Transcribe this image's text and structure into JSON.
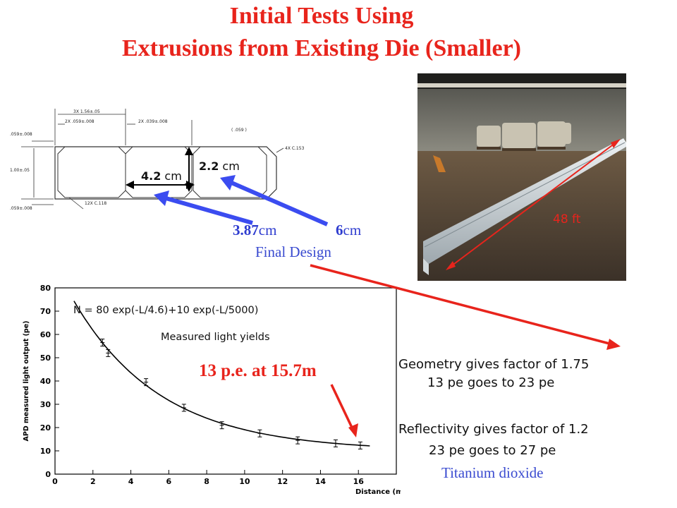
{
  "title": {
    "line1": "Initial Tests Using",
    "line2": "Extrusions from Existing Die (Smaller)"
  },
  "drawing": {
    "dims": {
      "top_pitch": "3X 1.56±.05",
      "wall_left": "2X .059±.008",
      "wall_mid": "2X .039±.008",
      "wall_right": "( .059 )",
      "left_top": ".059±.008",
      "left_height": "1.00±.05",
      "left_bottom": ".059±.008",
      "corner_right": "4X C.153",
      "corner_bottom": "12X C.118"
    },
    "label_width": "4.2",
    "label_width_unit": " cm",
    "label_height": "2.2",
    "label_height_unit": " cm"
  },
  "final_design": {
    "size1": "3.87",
    "size1_unit": "cm",
    "size2": "6",
    "size2_unit": "cm",
    "label": "Final Design"
  },
  "photo": {
    "length_label": "48 ft"
  },
  "chart_data": {
    "type": "scatter",
    "title": "",
    "xlabel": "Distance (m)",
    "ylabel": "APD measured light output (pe)",
    "xlim": [
      0,
      18
    ],
    "ylim": [
      0,
      80
    ],
    "xticks": [
      0,
      2,
      4,
      6,
      8,
      10,
      12,
      14,
      16
    ],
    "yticks": [
      0,
      10,
      20,
      30,
      40,
      50,
      60,
      70,
      80
    ],
    "points": [
      {
        "x": 2.5,
        "y": 56.5
      },
      {
        "x": 2.8,
        "y": 52.0
      },
      {
        "x": 4.8,
        "y": 39.5
      },
      {
        "x": 6.8,
        "y": 28.5
      },
      {
        "x": 8.8,
        "y": 21.0
      },
      {
        "x": 10.8,
        "y": 17.5
      },
      {
        "x": 12.8,
        "y": 14.5
      },
      {
        "x": 14.8,
        "y": 13.2
      },
      {
        "x": 16.1,
        "y": 12.3
      }
    ],
    "fit": {
      "formula": "N = 80 exp(-L/4.6)+10 exp(-L/5000)",
      "a": 80,
      "l1": 4.6,
      "b": 10,
      "l2": 5000,
      "x_range": [
        1.0,
        16.6
      ]
    },
    "legend_text": "Measured light yields",
    "annotation": "13 p.e. at 15.7m"
  },
  "notes": {
    "geometry_line1": "Geometry gives factor of 1.75",
    "geometry_line2": "13 pe goes to 23 pe",
    "reflect_line1": "Reflectivity gives factor of 1.2",
    "reflect_line2": "23 pe goes to 27 pe",
    "reflect_material": "Titanium dioxide"
  },
  "colors": {
    "title_red": "#e8241c",
    "arrow_blue": "#3b4cf0",
    "design_blue": "#2e3ccf",
    "note_blue": "#3a4bd0",
    "arrow_red": "#e8241c"
  }
}
